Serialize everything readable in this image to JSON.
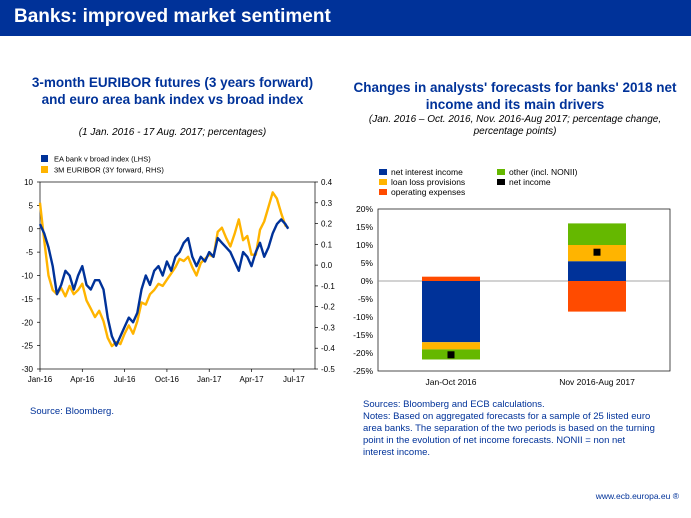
{
  "header": {
    "title": "Banks: improved market sentiment"
  },
  "left_chart": {
    "title": "3-month EURIBOR futures (3 years forward) and euro area bank index vs broad index",
    "subtitle": "(1 Jan. 2016 - 17 Aug. 2017; percentages)",
    "source": "Source: Bloomberg."
  },
  "right_chart": {
    "title": "Changes in analysts' forecasts for banks' 2018 net income and its main drivers",
    "subtitle": "(Jan. 2016 – Oct. 2016, Nov. 2016-Aug 2017; percentage change, percentage points)",
    "notes": [
      "Sources: Bloomberg and ECB calculations.",
      "Notes: Based on aggregated forecasts for a sample of 25 listed euro",
      "area banks. The separation of the two periods is based on the turning",
      "point in the evolution of net income forecasts. NONII = non net",
      "interest income."
    ]
  },
  "footer": {
    "text": "www.ecb.europa.eu ®"
  },
  "chart_data": [
    {
      "type": "line",
      "title": "3-month EURIBOR futures (3 years forward) and euro area bank index vs broad index",
      "x_ticks": [
        "Jan-16",
        "Apr-16",
        "Jul-16",
        "Oct-16",
        "Jan-17",
        "Apr-17",
        "Jul-17"
      ],
      "y_left": {
        "range": [
          -30,
          10
        ],
        "ticks": [
          10,
          5,
          0,
          -5,
          -10,
          -15,
          -20,
          -25,
          -30
        ]
      },
      "y_right": {
        "range": [
          -0.5,
          0.4
        ],
        "ticks": [
          0.4,
          0.3,
          0.2,
          0.1,
          0.0,
          -0.1,
          -0.2,
          -0.3,
          -0.4,
          -0.5
        ]
      },
      "legend_position": "top-left",
      "series": [
        {
          "name": "EA bank v broad index (LHS)",
          "axis": "left",
          "color": "#003299",
          "x": [
            0,
            0.3,
            0.6,
            0.9,
            1.2,
            1.5,
            1.8,
            2.1,
            2.4,
            2.7,
            3.0,
            3.3,
            3.6,
            3.9,
            4.2,
            4.5,
            4.8,
            5.1,
            5.4,
            5.7,
            6.0,
            6.3,
            6.6,
            6.9,
            7.2,
            7.5,
            7.8,
            8.1,
            8.4,
            8.7,
            9.0,
            9.3,
            9.6,
            9.9,
            10.2,
            10.5,
            10.8,
            11.1,
            11.4,
            11.7,
            12.0,
            12.3,
            12.6,
            12.9,
            13.2,
            13.5,
            13.8,
            14.1,
            14.4,
            14.7,
            15.0,
            15.3,
            15.6,
            15.9,
            16.2,
            16.5,
            16.8,
            17.1,
            17.4,
            17.6
          ],
          "values": [
            1,
            -1,
            -4,
            -8,
            -14,
            -12,
            -9,
            -10,
            -13,
            -10,
            -8,
            -12,
            -13,
            -11,
            -11,
            -13,
            -19,
            -23,
            -25,
            -23,
            -21,
            -19,
            -20,
            -18,
            -13,
            -10,
            -12,
            -9,
            -8,
            -10,
            -7,
            -9,
            -6,
            -5,
            -3,
            -2,
            -6,
            -8,
            -6,
            -7,
            -5,
            -6,
            -2,
            -3,
            -4,
            -5,
            -7,
            -9,
            -5,
            -6,
            -8,
            -5,
            -3,
            -6,
            -4,
            -1,
            1,
            2,
            1,
            0
          ]
        },
        {
          "name": "3M EURIBOR (3Y forward, RHS)",
          "axis": "right",
          "color": "#ffb400",
          "x": [
            0,
            0.3,
            0.6,
            0.9,
            1.2,
            1.5,
            1.8,
            2.1,
            2.4,
            2.7,
            3.0,
            3.3,
            3.6,
            3.9,
            4.2,
            4.5,
            4.8,
            5.1,
            5.4,
            5.7,
            6.0,
            6.3,
            6.6,
            6.9,
            7.2,
            7.5,
            7.8,
            8.1,
            8.4,
            8.7,
            9.0,
            9.3,
            9.6,
            9.9,
            10.2,
            10.5,
            10.8,
            11.1,
            11.4,
            11.7,
            12.0,
            12.3,
            12.6,
            12.9,
            13.2,
            13.5,
            13.8,
            14.1,
            14.4,
            14.7,
            15.0,
            15.3,
            15.6,
            15.9,
            16.2,
            16.5,
            16.8,
            17.1,
            17.4,
            17.6
          ],
          "values": [
            0.3,
            0.12,
            -0.05,
            -0.12,
            -0.14,
            -0.11,
            -0.15,
            -0.1,
            -0.14,
            -0.12,
            -0.09,
            -0.17,
            -0.21,
            -0.25,
            -0.22,
            -0.27,
            -0.35,
            -0.39,
            -0.37,
            -0.38,
            -0.33,
            -0.29,
            -0.33,
            -0.27,
            -0.18,
            -0.19,
            -0.14,
            -0.12,
            -0.09,
            -0.1,
            -0.07,
            -0.04,
            -0.01,
            0.03,
            0.02,
            0.04,
            -0.01,
            -0.05,
            0.01,
            0.03,
            0.05,
            0.04,
            0.16,
            0.18,
            0.13,
            0.09,
            0.15,
            0.22,
            0.12,
            0.14,
            0.05,
            0.05,
            0.17,
            0.21,
            0.28,
            0.35,
            0.32,
            0.25,
            0.19,
            0.18
          ]
        }
      ]
    },
    {
      "type": "bar",
      "stacked": true,
      "title": "Changes in analysts' forecasts for banks' 2018 net income and its main drivers",
      "categories": [
        "Jan-Oct 2016",
        "Nov 2016-Aug 2017"
      ],
      "y_range": [
        -25,
        20
      ],
      "y_ticks": [
        "20%",
        "15%",
        "10%",
        "5%",
        "0%",
        "-5%",
        "-10%",
        "-15%",
        "-20%",
        "-25%"
      ],
      "legend_position": "top",
      "series": [
        {
          "name": "net interest income",
          "color": "#003299",
          "values": [
            -17,
            5.5
          ]
        },
        {
          "name": "loan loss provisions",
          "color": "#ffb400",
          "values": [
            -2,
            4.5
          ]
        },
        {
          "name": "operating expenses",
          "color": "#ff4b00",
          "values": [
            1.2,
            -8.5
          ]
        },
        {
          "name": "other (incl. NONII)",
          "color": "#65b800",
          "values": [
            -2.8,
            6
          ]
        }
      ],
      "net_income": {
        "name": "net income",
        "color": "#000000",
        "values": [
          -20.5,
          8
        ]
      }
    }
  ]
}
